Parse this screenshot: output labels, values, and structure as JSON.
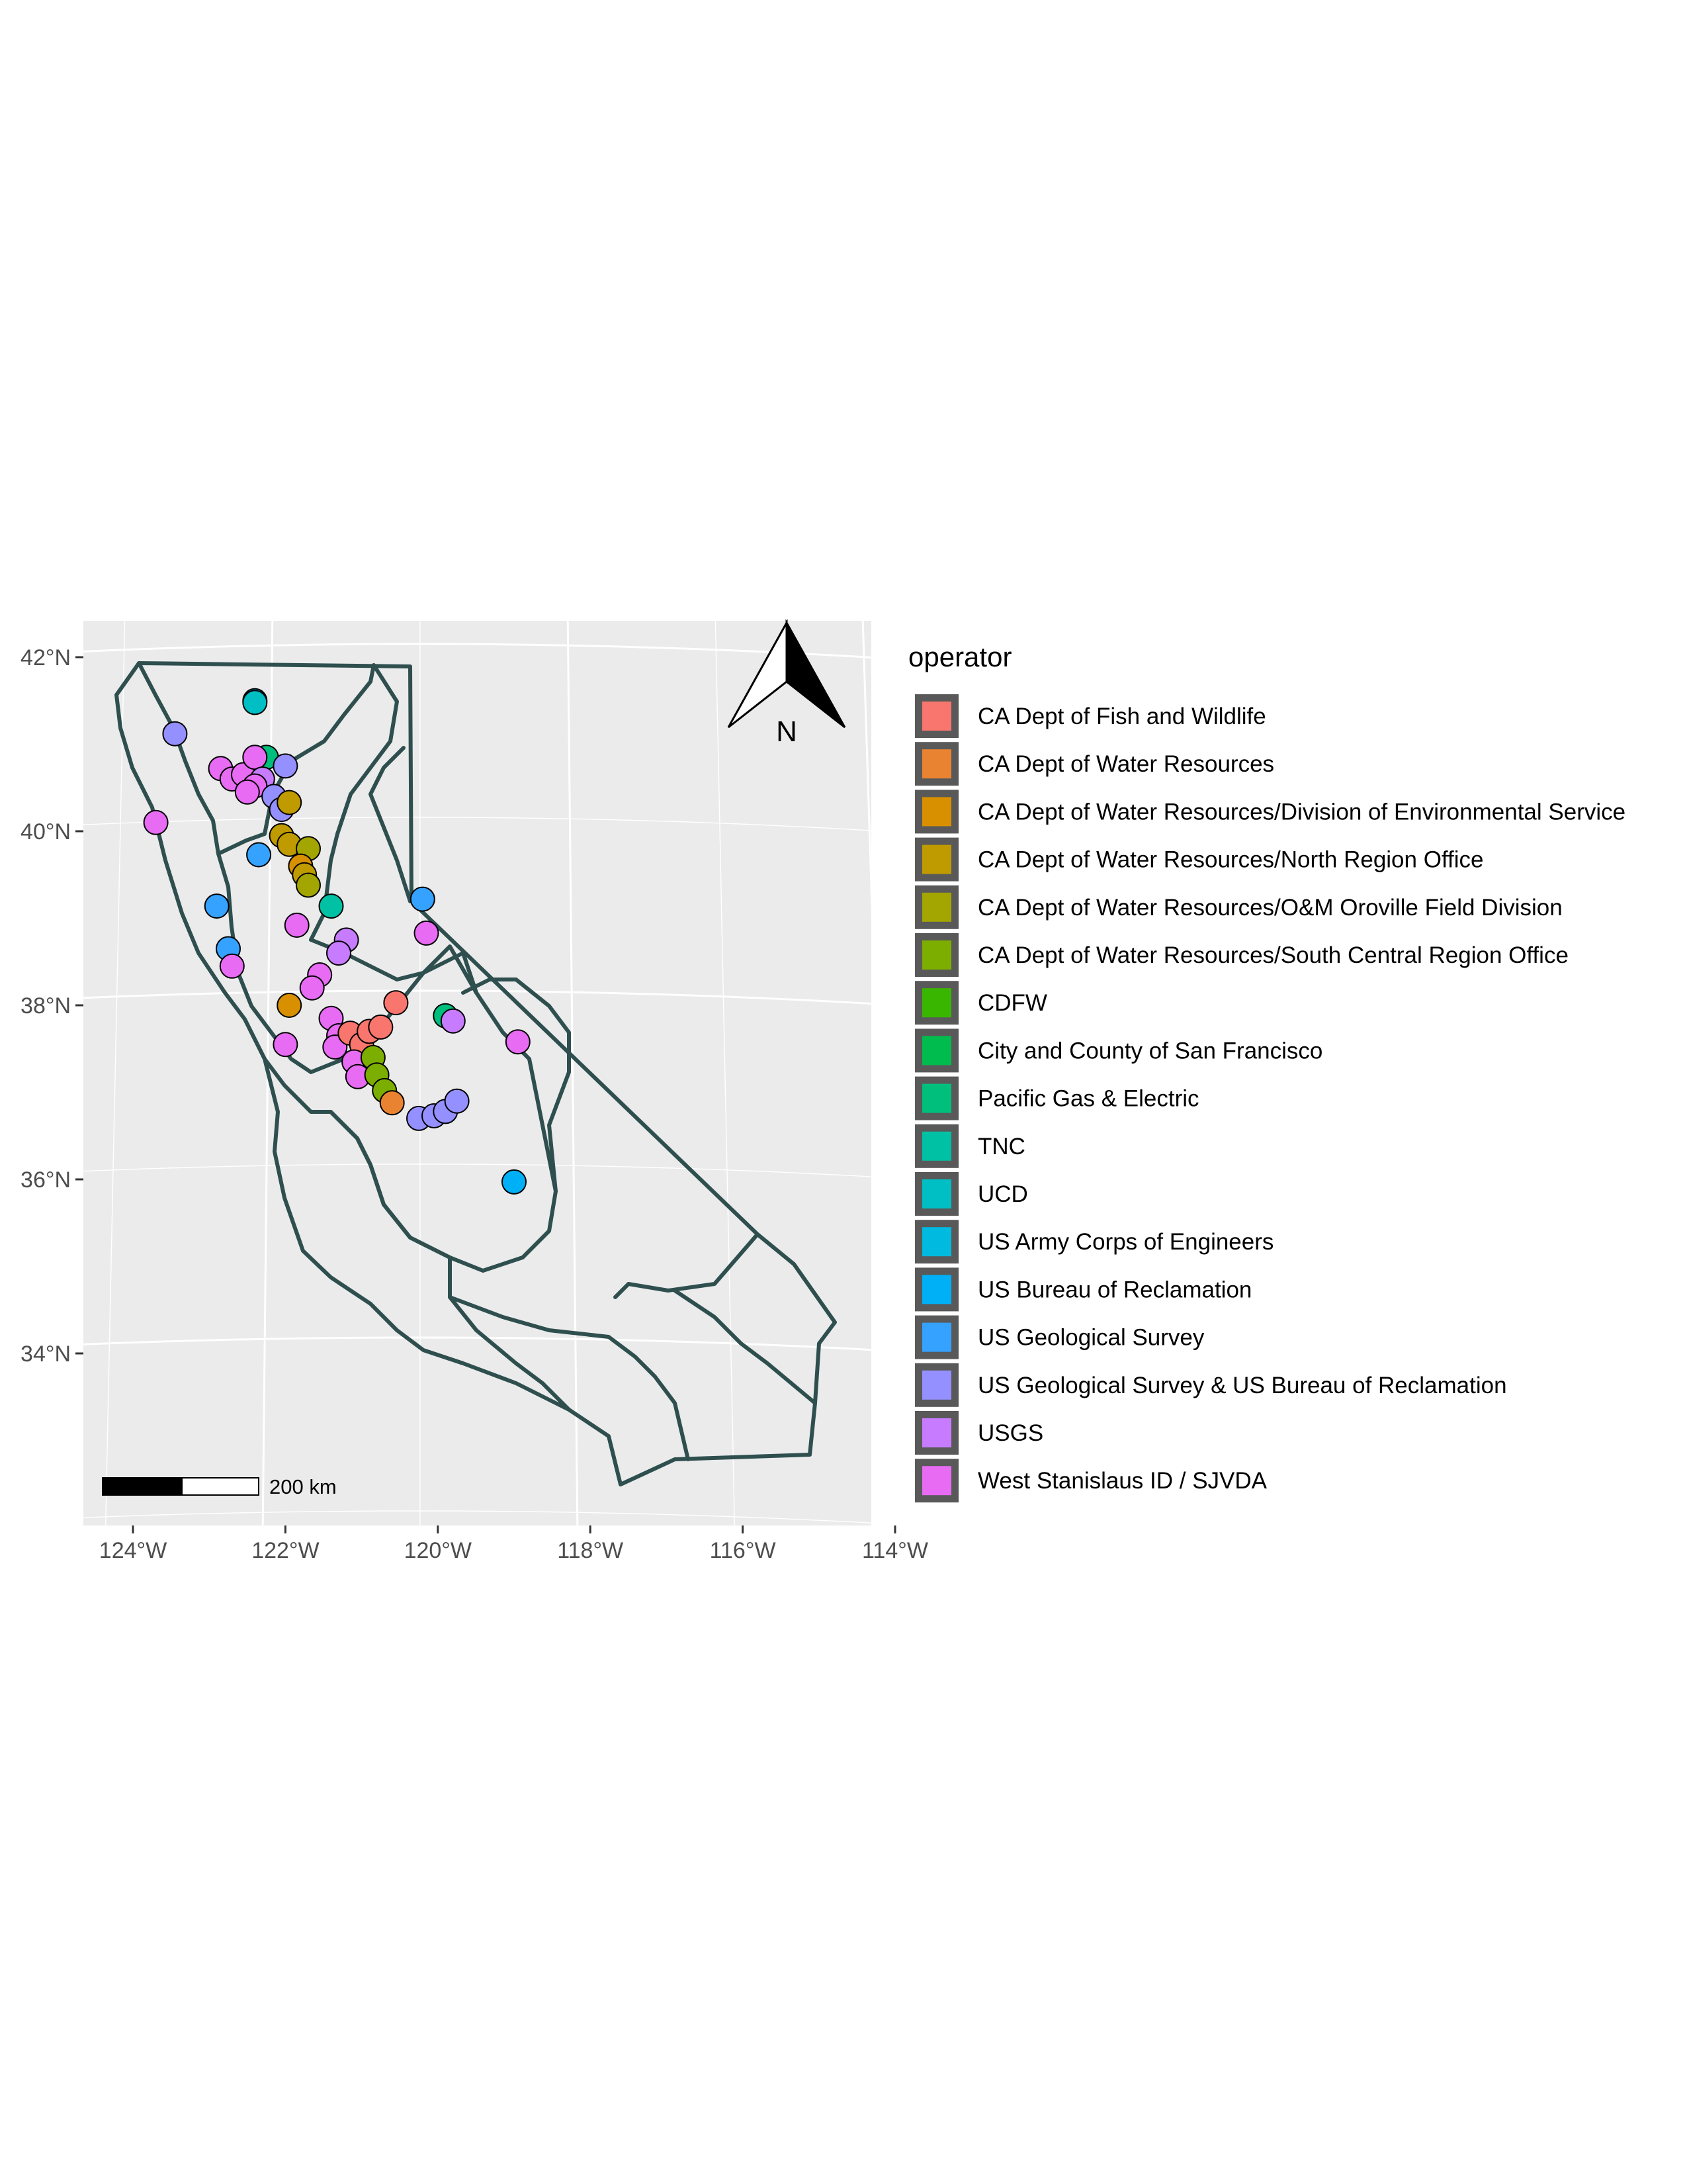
{
  "map": {
    "legend_title": "operator",
    "north_arrow_label": "N",
    "scale_bar_label": "200 km",
    "x_ticks": [
      {
        "label": "124°W",
        "lon": -124
      },
      {
        "label": "122°W",
        "lon": -122
      },
      {
        "label": "120°W",
        "lon": -120
      },
      {
        "label": "118°W",
        "lon": -118
      },
      {
        "label": "116°W",
        "lon": -116
      },
      {
        "label": "114°W",
        "lon": -114
      }
    ],
    "y_ticks": [
      {
        "label": "42°N",
        "lat": 42
      },
      {
        "label": "40°N",
        "lat": 40
      },
      {
        "label": "38°N",
        "lat": 38
      },
      {
        "label": "36°N",
        "lat": 36
      },
      {
        "label": "34°N",
        "lat": 34
      }
    ],
    "colors": {
      "panel_bg": "#ebebeb",
      "grid": "#ffffff",
      "boundary": "#2f4f4f",
      "legend_key_bg": "#595959"
    },
    "operators": [
      {
        "name": "CA Dept of Fish and Wildlife",
        "color": "#F8766D"
      },
      {
        "name": "CA Dept of Water Resources",
        "color": "#EA8331"
      },
      {
        "name": "CA Dept of Water Resources/Division of Environmental Service",
        "color": "#D89000"
      },
      {
        "name": "CA Dept of Water Resources/North Region Office",
        "color": "#C09B00"
      },
      {
        "name": "CA Dept of Water Resources/O&M Oroville Field Division",
        "color": "#A3A500"
      },
      {
        "name": "CA Dept of Water Resources/South Central Region Office",
        "color": "#7CAE00"
      },
      {
        "name": "CDFW",
        "color": "#39B600"
      },
      {
        "name": "City and County of San Francisco",
        "color": "#00BB4E"
      },
      {
        "name": "Pacific Gas & Electric",
        "color": "#00BF7D"
      },
      {
        "name": "TNC",
        "color": "#00C1A3"
      },
      {
        "name": "UCD",
        "color": "#00BFC4"
      },
      {
        "name": "US Army Corps of Engineers",
        "color": "#00BAE0"
      },
      {
        "name": "US Bureau of Reclamation",
        "color": "#00B0F6"
      },
      {
        "name": "US Geological Survey",
        "color": "#35A2FF"
      },
      {
        "name": "US Geological Survey & US Bureau of Reclamation",
        "color": "#9590FF"
      },
      {
        "name": "USGS",
        "color": "#C77CFF"
      },
      {
        "name": "West Stanislaus ID / SJVDA",
        "color": "#E76BF3"
      }
    ],
    "points": [
      {
        "lon": -122.4,
        "lat": 41.5,
        "op": 12
      },
      {
        "lon": -122.4,
        "lat": 41.48,
        "op": 10
      },
      {
        "lon": -122.25,
        "lat": 40.85,
        "op": 8
      },
      {
        "lon": -123.45,
        "lat": 41.12,
        "op": 14
      },
      {
        "lon": -122.85,
        "lat": 40.72,
        "op": 16
      },
      {
        "lon": -122.7,
        "lat": 40.6,
        "op": 16
      },
      {
        "lon": -122.55,
        "lat": 40.65,
        "op": 16
      },
      {
        "lon": -122.4,
        "lat": 40.85,
        "op": 16
      },
      {
        "lon": -122.3,
        "lat": 40.6,
        "op": 15
      },
      {
        "lon": -122.4,
        "lat": 40.52,
        "op": 16
      },
      {
        "lon": -122.5,
        "lat": 40.45,
        "op": 16
      },
      {
        "lon": -122.15,
        "lat": 40.4,
        "op": 14
      },
      {
        "lon": -122.0,
        "lat": 40.75,
        "op": 14
      },
      {
        "lon": -122.05,
        "lat": 40.25,
        "op": 14
      },
      {
        "lon": -121.95,
        "lat": 40.33,
        "op": 3
      },
      {
        "lon": -122.05,
        "lat": 39.95,
        "op": 3
      },
      {
        "lon": -121.95,
        "lat": 39.85,
        "op": 3
      },
      {
        "lon": -121.7,
        "lat": 39.8,
        "op": 4
      },
      {
        "lon": -121.8,
        "lat": 39.6,
        "op": 2
      },
      {
        "lon": -121.75,
        "lat": 39.5,
        "op": 3
      },
      {
        "lon": -121.7,
        "lat": 39.38,
        "op": 4
      },
      {
        "lon": -121.4,
        "lat": 39.14,
        "op": 9
      },
      {
        "lon": -122.35,
        "lat": 39.73,
        "op": 13
      },
      {
        "lon": -122.9,
        "lat": 39.14,
        "op": 13
      },
      {
        "lon": -123.7,
        "lat": 40.1,
        "op": 16
      },
      {
        "lon": -122.75,
        "lat": 38.65,
        "op": 13
      },
      {
        "lon": -122.7,
        "lat": 38.45,
        "op": 16
      },
      {
        "lon": -121.85,
        "lat": 38.92,
        "op": 16
      },
      {
        "lon": -121.2,
        "lat": 38.75,
        "op": 15
      },
      {
        "lon": -121.3,
        "lat": 38.6,
        "op": 15
      },
      {
        "lon": -121.55,
        "lat": 38.35,
        "op": 16
      },
      {
        "lon": -121.65,
        "lat": 38.2,
        "op": 16
      },
      {
        "lon": -121.95,
        "lat": 38.0,
        "op": 2
      },
      {
        "lon": -122.0,
        "lat": 37.55,
        "op": 16
      },
      {
        "lon": -121.4,
        "lat": 37.85,
        "op": 16
      },
      {
        "lon": -121.3,
        "lat": 37.65,
        "op": 16
      },
      {
        "lon": -121.35,
        "lat": 37.52,
        "op": 16
      },
      {
        "lon": -121.15,
        "lat": 37.68,
        "op": 0
      },
      {
        "lon": -121.0,
        "lat": 37.55,
        "op": 0
      },
      {
        "lon": -120.9,
        "lat": 37.7,
        "op": 0
      },
      {
        "lon": -120.75,
        "lat": 37.75,
        "op": 0
      },
      {
        "lon": -120.55,
        "lat": 38.03,
        "op": 0
      },
      {
        "lon": -121.1,
        "lat": 37.35,
        "op": 16
      },
      {
        "lon": -121.05,
        "lat": 37.18,
        "op": 16
      },
      {
        "lon": -120.85,
        "lat": 37.4,
        "op": 5
      },
      {
        "lon": -120.8,
        "lat": 37.2,
        "op": 5
      },
      {
        "lon": -120.7,
        "lat": 37.02,
        "op": 5
      },
      {
        "lon": -120.6,
        "lat": 36.88,
        "op": 1
      },
      {
        "lon": -119.9,
        "lat": 37.88,
        "op": 8
      },
      {
        "lon": -119.8,
        "lat": 37.82,
        "op": 15
      },
      {
        "lon": -118.95,
        "lat": 37.58,
        "op": 16
      },
      {
        "lon": -120.15,
        "lat": 38.83,
        "op": 16
      },
      {
        "lon": -120.2,
        "lat": 39.22,
        "op": 13
      },
      {
        "lon": -120.25,
        "lat": 36.7,
        "op": 14
      },
      {
        "lon": -120.05,
        "lat": 36.73,
        "op": 14
      },
      {
        "lon": -119.9,
        "lat": 36.78,
        "op": 14
      },
      {
        "lon": -119.75,
        "lat": 36.9,
        "op": 14
      },
      {
        "lon": -119.0,
        "lat": 35.97,
        "op": 12
      }
    ]
  }
}
